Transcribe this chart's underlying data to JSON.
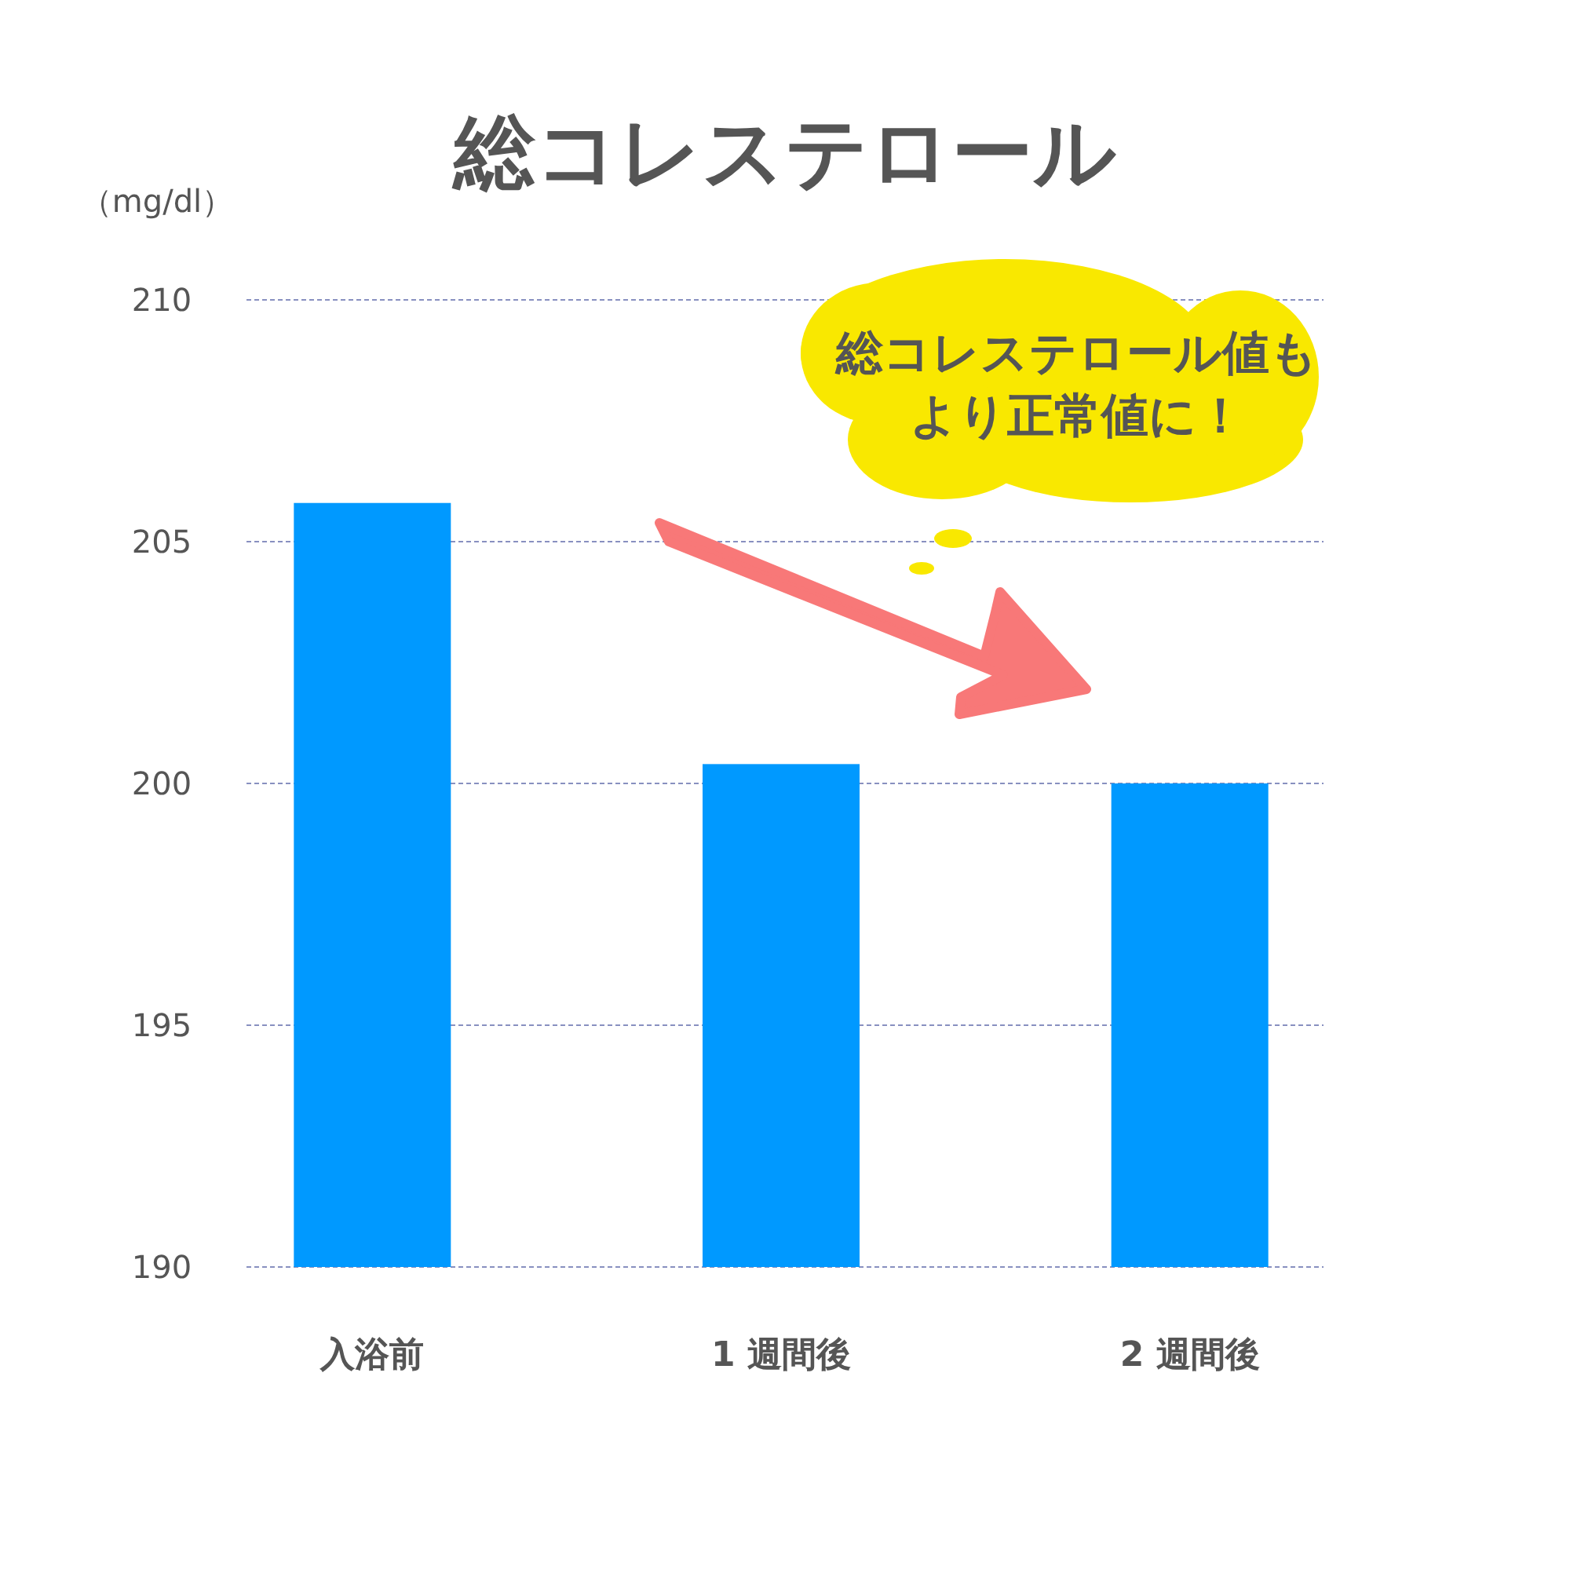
{
  "chart_data": {
    "type": "bar",
    "title": "総コレステロール",
    "ylabel": "（mg/dl）",
    "categories": [
      "入浴前",
      "1 週間後",
      "2 週間後"
    ],
    "values": [
      205.8,
      200.4,
      200.0
    ],
    "color": "#0099ff",
    "ylim": [
      190,
      210
    ],
    "yticks": [
      190,
      195,
      200,
      205,
      210
    ],
    "grid": "y",
    "annotations": [
      "総コレステロール値もより正常値に！"
    ]
  }
}
